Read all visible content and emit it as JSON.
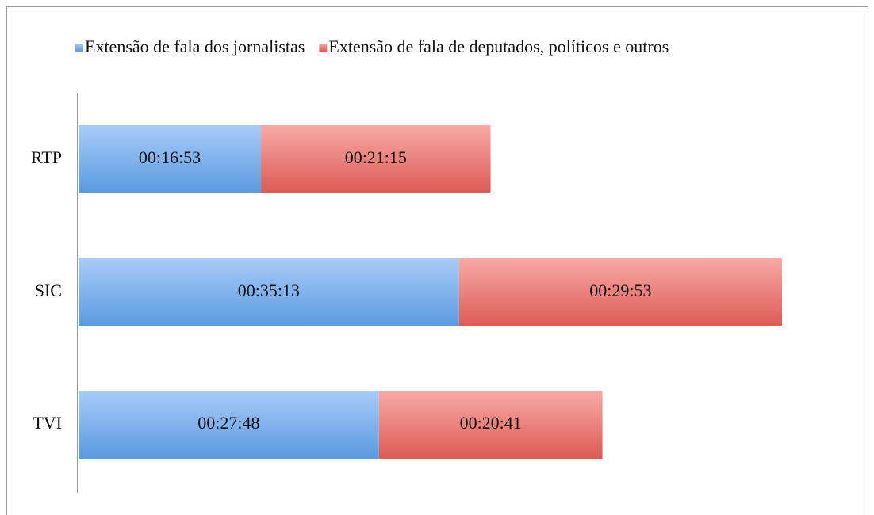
{
  "chart_data": {
    "type": "stacked-bar-horizontal",
    "categories": [
      "RTP",
      "SIC",
      "TVI"
    ],
    "series": [
      {
        "name": "Extensão de fala dos jornalistas",
        "color": "#5a9ae0",
        "values": [
          1013,
          2113,
          1668
        ],
        "value_labels": [
          "00:16:53",
          "00:35:13",
          "00:27:48"
        ]
      },
      {
        "name": "Extensão de fala de deputados, políticos e outros",
        "color": "#dd5a55",
        "values": [
          1275,
          1793,
          1241
        ],
        "value_labels": [
          "00:21:15",
          "00:29:53",
          "00:20:41"
        ]
      }
    ],
    "legend": "top"
  }
}
